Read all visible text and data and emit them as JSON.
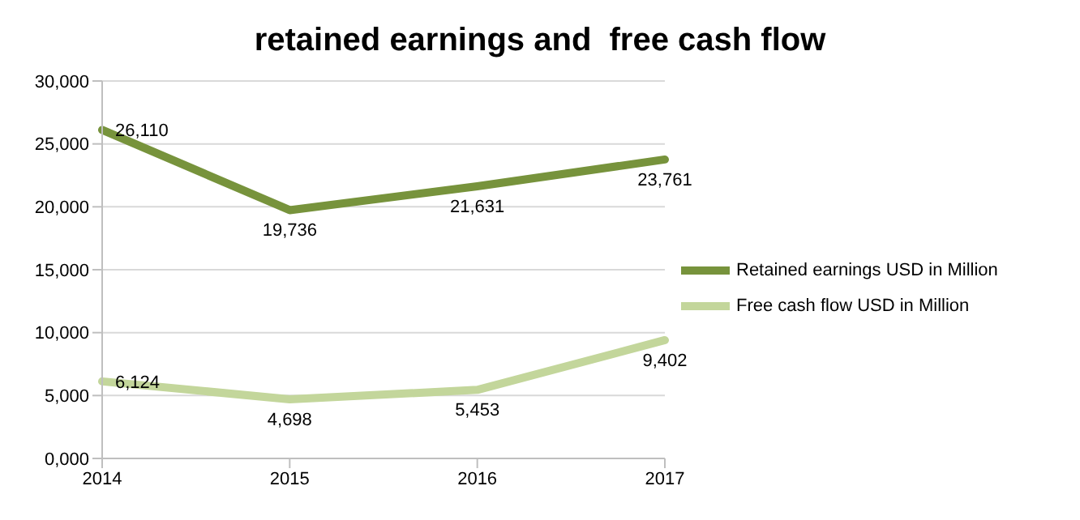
{
  "chart_data": {
    "type": "line",
    "title": "retained earnings and  free cash flow",
    "categories": [
      "2014",
      "2015",
      "2016",
      "2017"
    ],
    "series": [
      {
        "name": "Retained earnings USD in Million",
        "color": "#77933c",
        "values": [
          26110,
          19736,
          21631,
          23761
        ],
        "value_labels": [
          "26,110",
          "19,736",
          "21,631",
          "23,761"
        ]
      },
      {
        "name": "Free cash flow USD in Million",
        "color": "#c3d69b",
        "values": [
          6124,
          4698,
          5453,
          9402
        ],
        "value_labels": [
          "6,124",
          "4,698",
          "5,453",
          "9,402"
        ]
      }
    ],
    "ylim": [
      0,
      30000
    ],
    "yticks": [
      {
        "value": 0,
        "label": "0,000"
      },
      {
        "value": 5000,
        "label": "5,000"
      },
      {
        "value": 10000,
        "label": "10,000"
      },
      {
        "value": 15000,
        "label": "15,000"
      },
      {
        "value": 20000,
        "label": "20,000"
      },
      {
        "value": 25000,
        "label": "25,000"
      },
      {
        "value": 30000,
        "label": "30,000"
      }
    ],
    "grid": "y",
    "legend": "right",
    "marker": "none",
    "line_style": "solid"
  }
}
